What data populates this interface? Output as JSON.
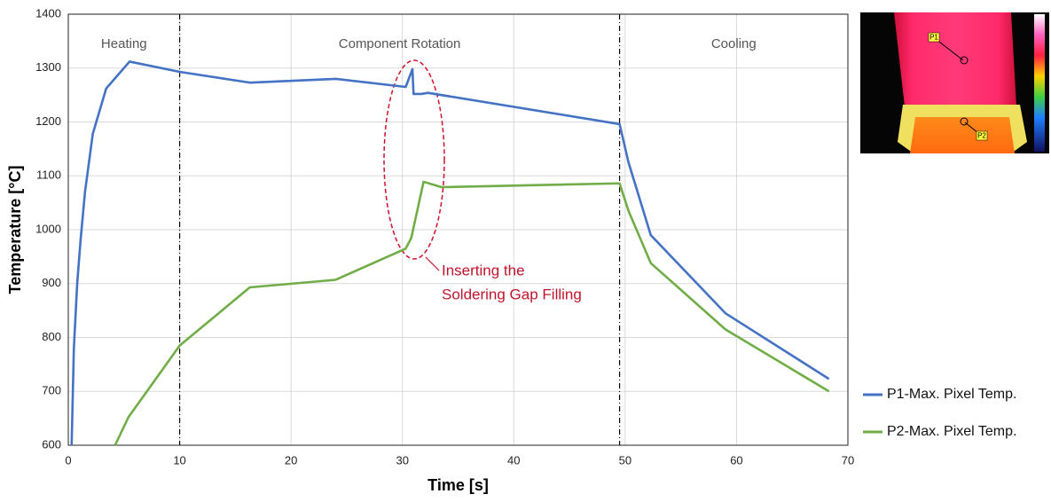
{
  "chart_data": {
    "type": "line",
    "xlabel": "Time [s]",
    "ylabel": "Temperature [°C]",
    "xlim": [
      0,
      70
    ],
    "ylim": [
      600,
      1400
    ],
    "xticks": [
      0,
      10,
      20,
      30,
      40,
      50,
      60,
      70
    ],
    "yticks": [
      600,
      700,
      800,
      900,
      1000,
      1100,
      1200,
      1300,
      1400
    ],
    "grid": true,
    "legend": "right",
    "phase_boundaries": [
      10,
      49.5
    ],
    "phases": [
      "Heating",
      "Component Rotation",
      "Cooling"
    ],
    "annotation": [
      "Inserting the",
      "Soldering Gap Filling"
    ],
    "series": [
      {
        "name": "P1-Max. Pixel Temp.",
        "color": "#4472c4",
        "x": [
          0.3,
          0.5,
          0.8,
          1.1,
          1.5,
          2.2,
          3.4,
          5.5,
          10,
          16.3,
          24,
          30.3,
          30.9,
          31.0,
          31.7,
          32.3,
          49.5,
          50.3,
          52.3,
          59,
          68.3
        ],
        "values": [
          600,
          780,
          900,
          980,
          1070,
          1178,
          1262,
          1312,
          1293,
          1273,
          1280,
          1265,
          1298,
          1252,
          1252,
          1254,
          1196,
          1125,
          990,
          845,
          723
        ]
      },
      {
        "name": "P2-Max. Pixel Temp.",
        "color": "#70ad47",
        "x": [
          4.2,
          5.4,
          10,
          16.3,
          24,
          30.3,
          30.8,
          31.9,
          33.5,
          49.5,
          50.3,
          52.3,
          59,
          68.3
        ],
        "values": [
          600,
          652,
          785,
          893,
          907,
          965,
          985,
          1089,
          1079,
          1086,
          1035,
          938,
          815,
          700
        ]
      }
    ]
  },
  "inset": {
    "labels": [
      "P1",
      "P2"
    ]
  }
}
